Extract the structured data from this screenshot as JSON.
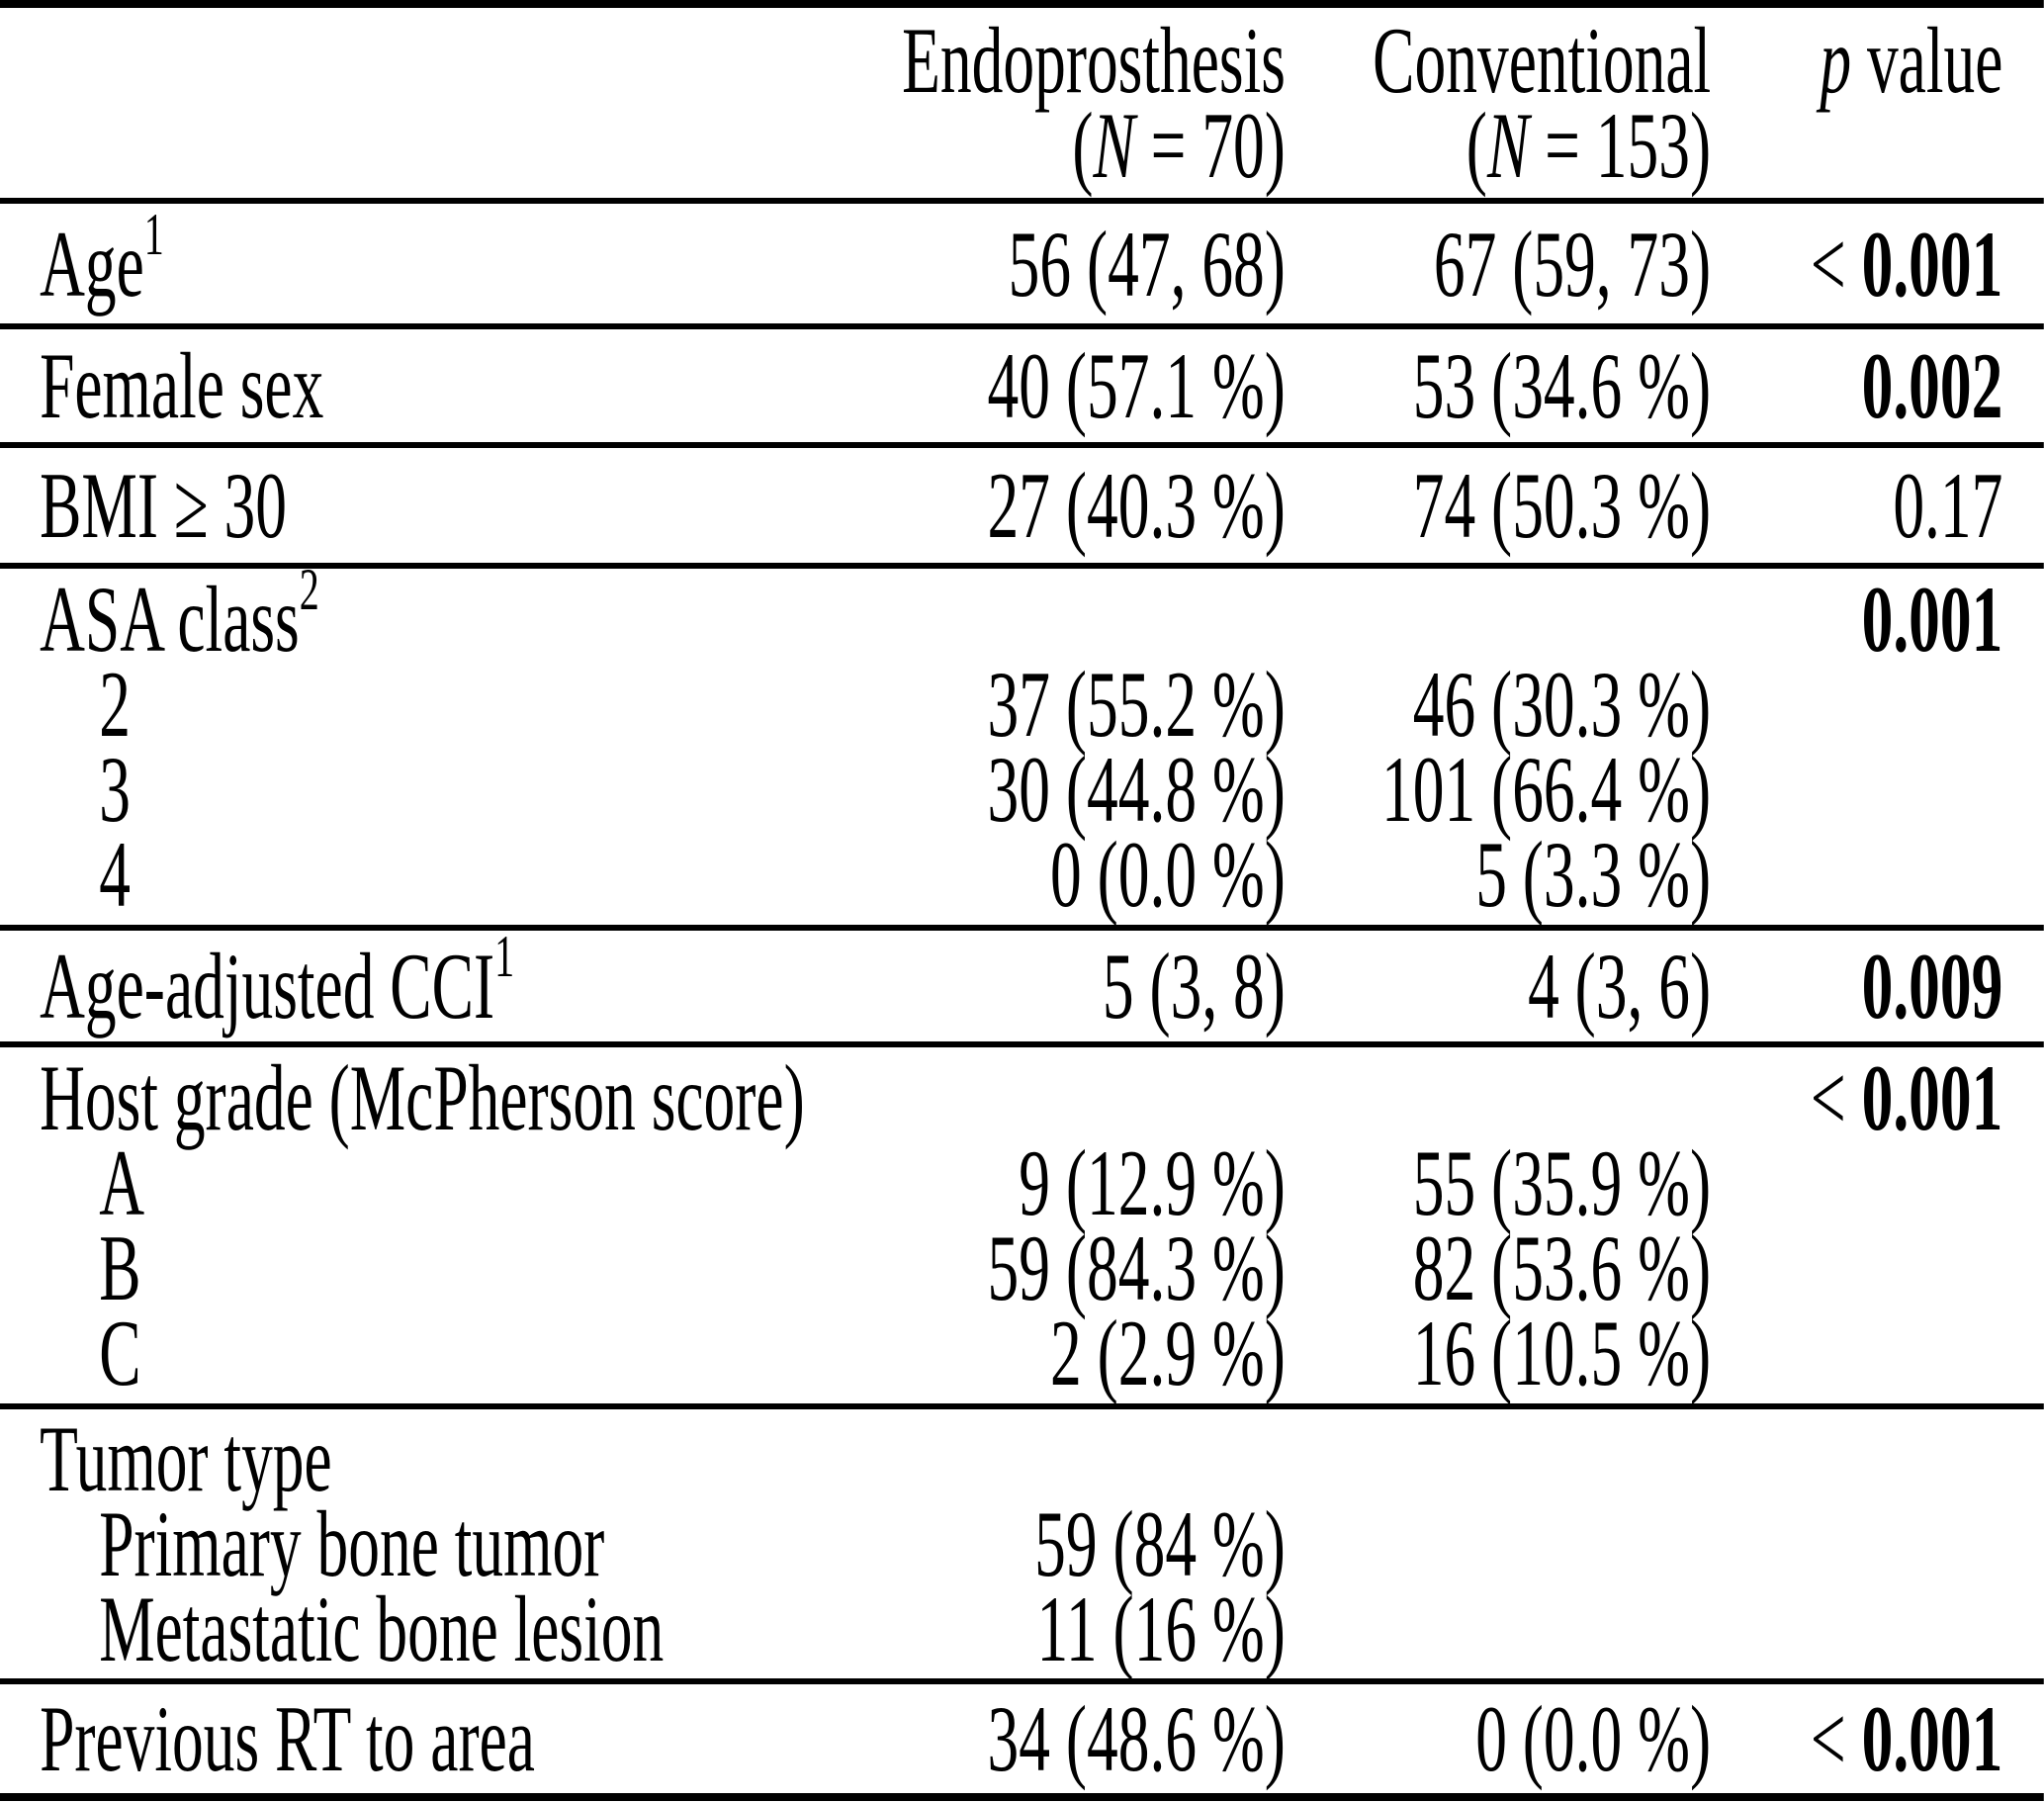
{
  "page": {
    "background_color": "#ffffff",
    "text_color": "#000000"
  },
  "header": {
    "endo": {
      "title": "Endoprosthesis",
      "n_pre": "(",
      "n_var": "N",
      "n_post": " = 70)"
    },
    "conv": {
      "title": "Conventional",
      "n_pre": "(",
      "n_var": "N",
      "n_post": " = 153)"
    },
    "p": {
      "var": "p",
      "post": " value"
    }
  },
  "rows": {
    "age": {
      "label": "Age",
      "sup": "1",
      "endo": "56 (47, 68)",
      "conv": "67 (59, 73)",
      "p_prefix": "< ",
      "p": "0.001"
    },
    "female_sex": {
      "label": "Female sex",
      "endo": "40 (57.1 %)",
      "conv": "53 (34.6 %)",
      "p_prefix": "",
      "p": "0.002"
    },
    "bmi": {
      "label": "BMI ≥ 30",
      "endo": "27 (40.3 %)",
      "conv": "74 (50.3 %)",
      "p_prefix": "",
      "p": "0.17"
    },
    "asa": {
      "label": "ASA class",
      "sup": "2",
      "endo": "",
      "conv": "",
      "p_prefix": "",
      "p": "0.001",
      "items": [
        {
          "label": "2",
          "endo": "37 (55.2 %)",
          "conv": "46 (30.3 %)"
        },
        {
          "label": "3",
          "endo": "30 (44.8 %)",
          "conv": "101 (66.4 %)"
        },
        {
          "label": "4",
          "endo": "0 (0.0 %)",
          "conv": "5 (3.3 %)"
        }
      ]
    },
    "cci": {
      "label": "Age-adjusted CCI",
      "sup": "1",
      "endo": "5 (3, 8)",
      "conv": "4 (3, 6)",
      "p_prefix": "",
      "p": "0.009"
    },
    "host_grade": {
      "label": "Host grade (McPherson score)",
      "endo": "",
      "conv": "",
      "p_prefix": "< ",
      "p": "0.001",
      "items": [
        {
          "label": "A",
          "endo": "9 (12.9 %)",
          "conv": "55 (35.9 %)"
        },
        {
          "label": "B",
          "endo": "59 (84.3 %)",
          "conv": "82 (53.6 %)"
        },
        {
          "label": "C",
          "endo": "2 (2.9 %)",
          "conv": "16 (10.5 %)"
        }
      ]
    },
    "tumor_type": {
      "label": "Tumor type",
      "items": [
        {
          "label": "Primary bone tumor",
          "endo": "59 (84 %)",
          "conv": ""
        },
        {
          "label": "Metastatic bone lesion",
          "endo": "11 (16 %)",
          "conv": ""
        }
      ]
    },
    "previous_rt": {
      "label": "Previous RT to area",
      "endo": "34 (48.6 %)",
      "conv": "0 (0.0 %)",
      "p_prefix": "< ",
      "p": "0.001"
    }
  }
}
